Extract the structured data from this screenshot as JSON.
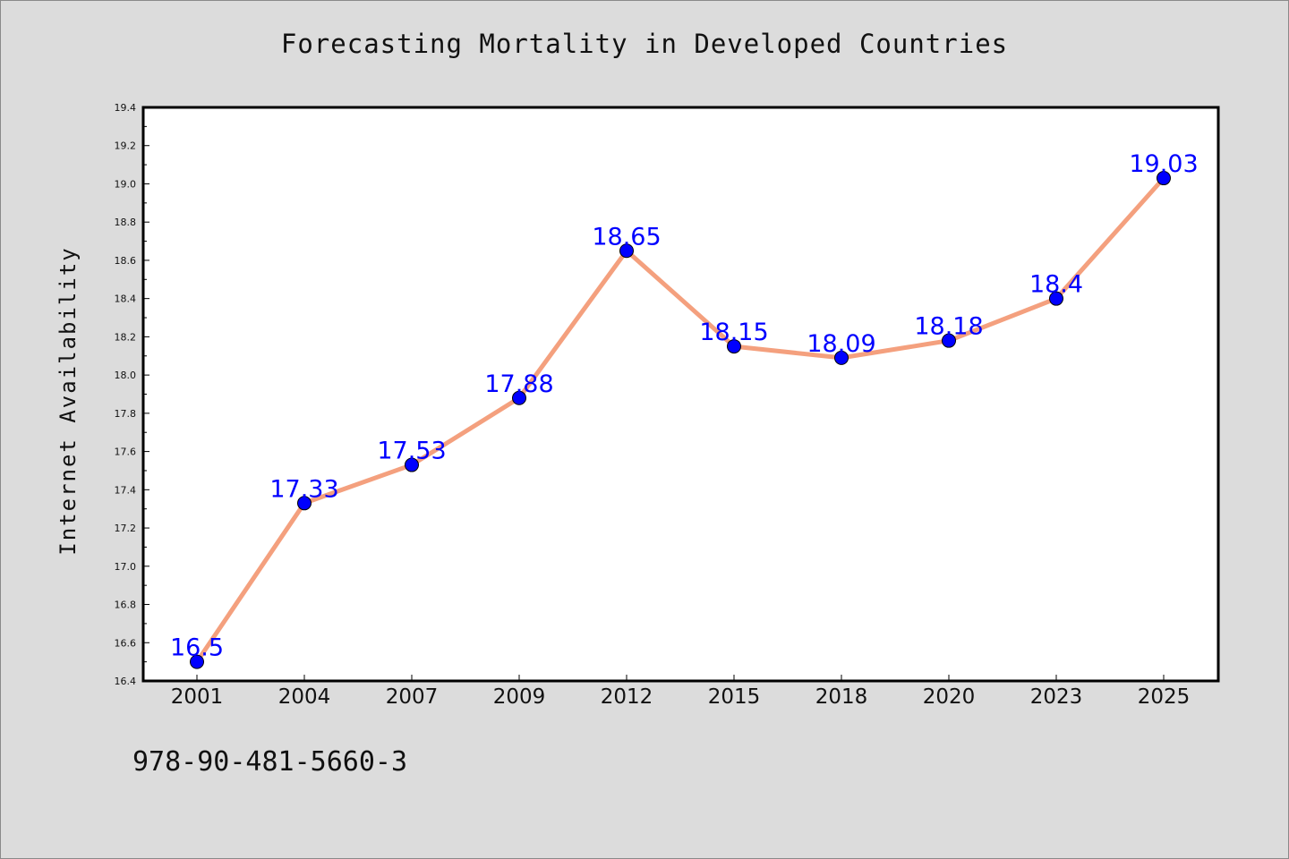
{
  "chart_data": {
    "type": "line",
    "title": "Forecasting Mortality in Developed Countries",
    "xlabel": "",
    "ylabel": "Internet Availability",
    "categories": [
      "2001",
      "2004",
      "2007",
      "2009",
      "2012",
      "2015",
      "2018",
      "2020",
      "2023",
      "2025"
    ],
    "series": [
      {
        "values": [
          16.5,
          17.33,
          17.53,
          17.88,
          18.65,
          18.15,
          18.09,
          18.18,
          18.4,
          19.03
        ],
        "data_labels": [
          "16.5",
          "17.33",
          "17.53",
          "17.88",
          "18.65",
          "18.15",
          "18.09",
          "18.18",
          "18.4",
          "19.03"
        ]
      }
    ],
    "ylim": [
      16.4,
      19.4
    ],
    "yticks": [
      "16.4",
      "16.6",
      "16.8",
      "17.0",
      "17.2",
      "17.4",
      "17.6",
      "17.8",
      "18.0",
      "18.2",
      "18.4",
      "18.6",
      "18.8",
      "19.0",
      "19.2",
      "19.4"
    ],
    "grid": false,
    "legend": "none",
    "colors": {
      "line": "#f4a07e",
      "marker": "#0000ff",
      "data_label": "#0000ff",
      "plot_background": "#ffffff",
      "figure_background": "#dcdcdc"
    }
  },
  "footer": {
    "isbn": "978-90-481-5660-3"
  }
}
